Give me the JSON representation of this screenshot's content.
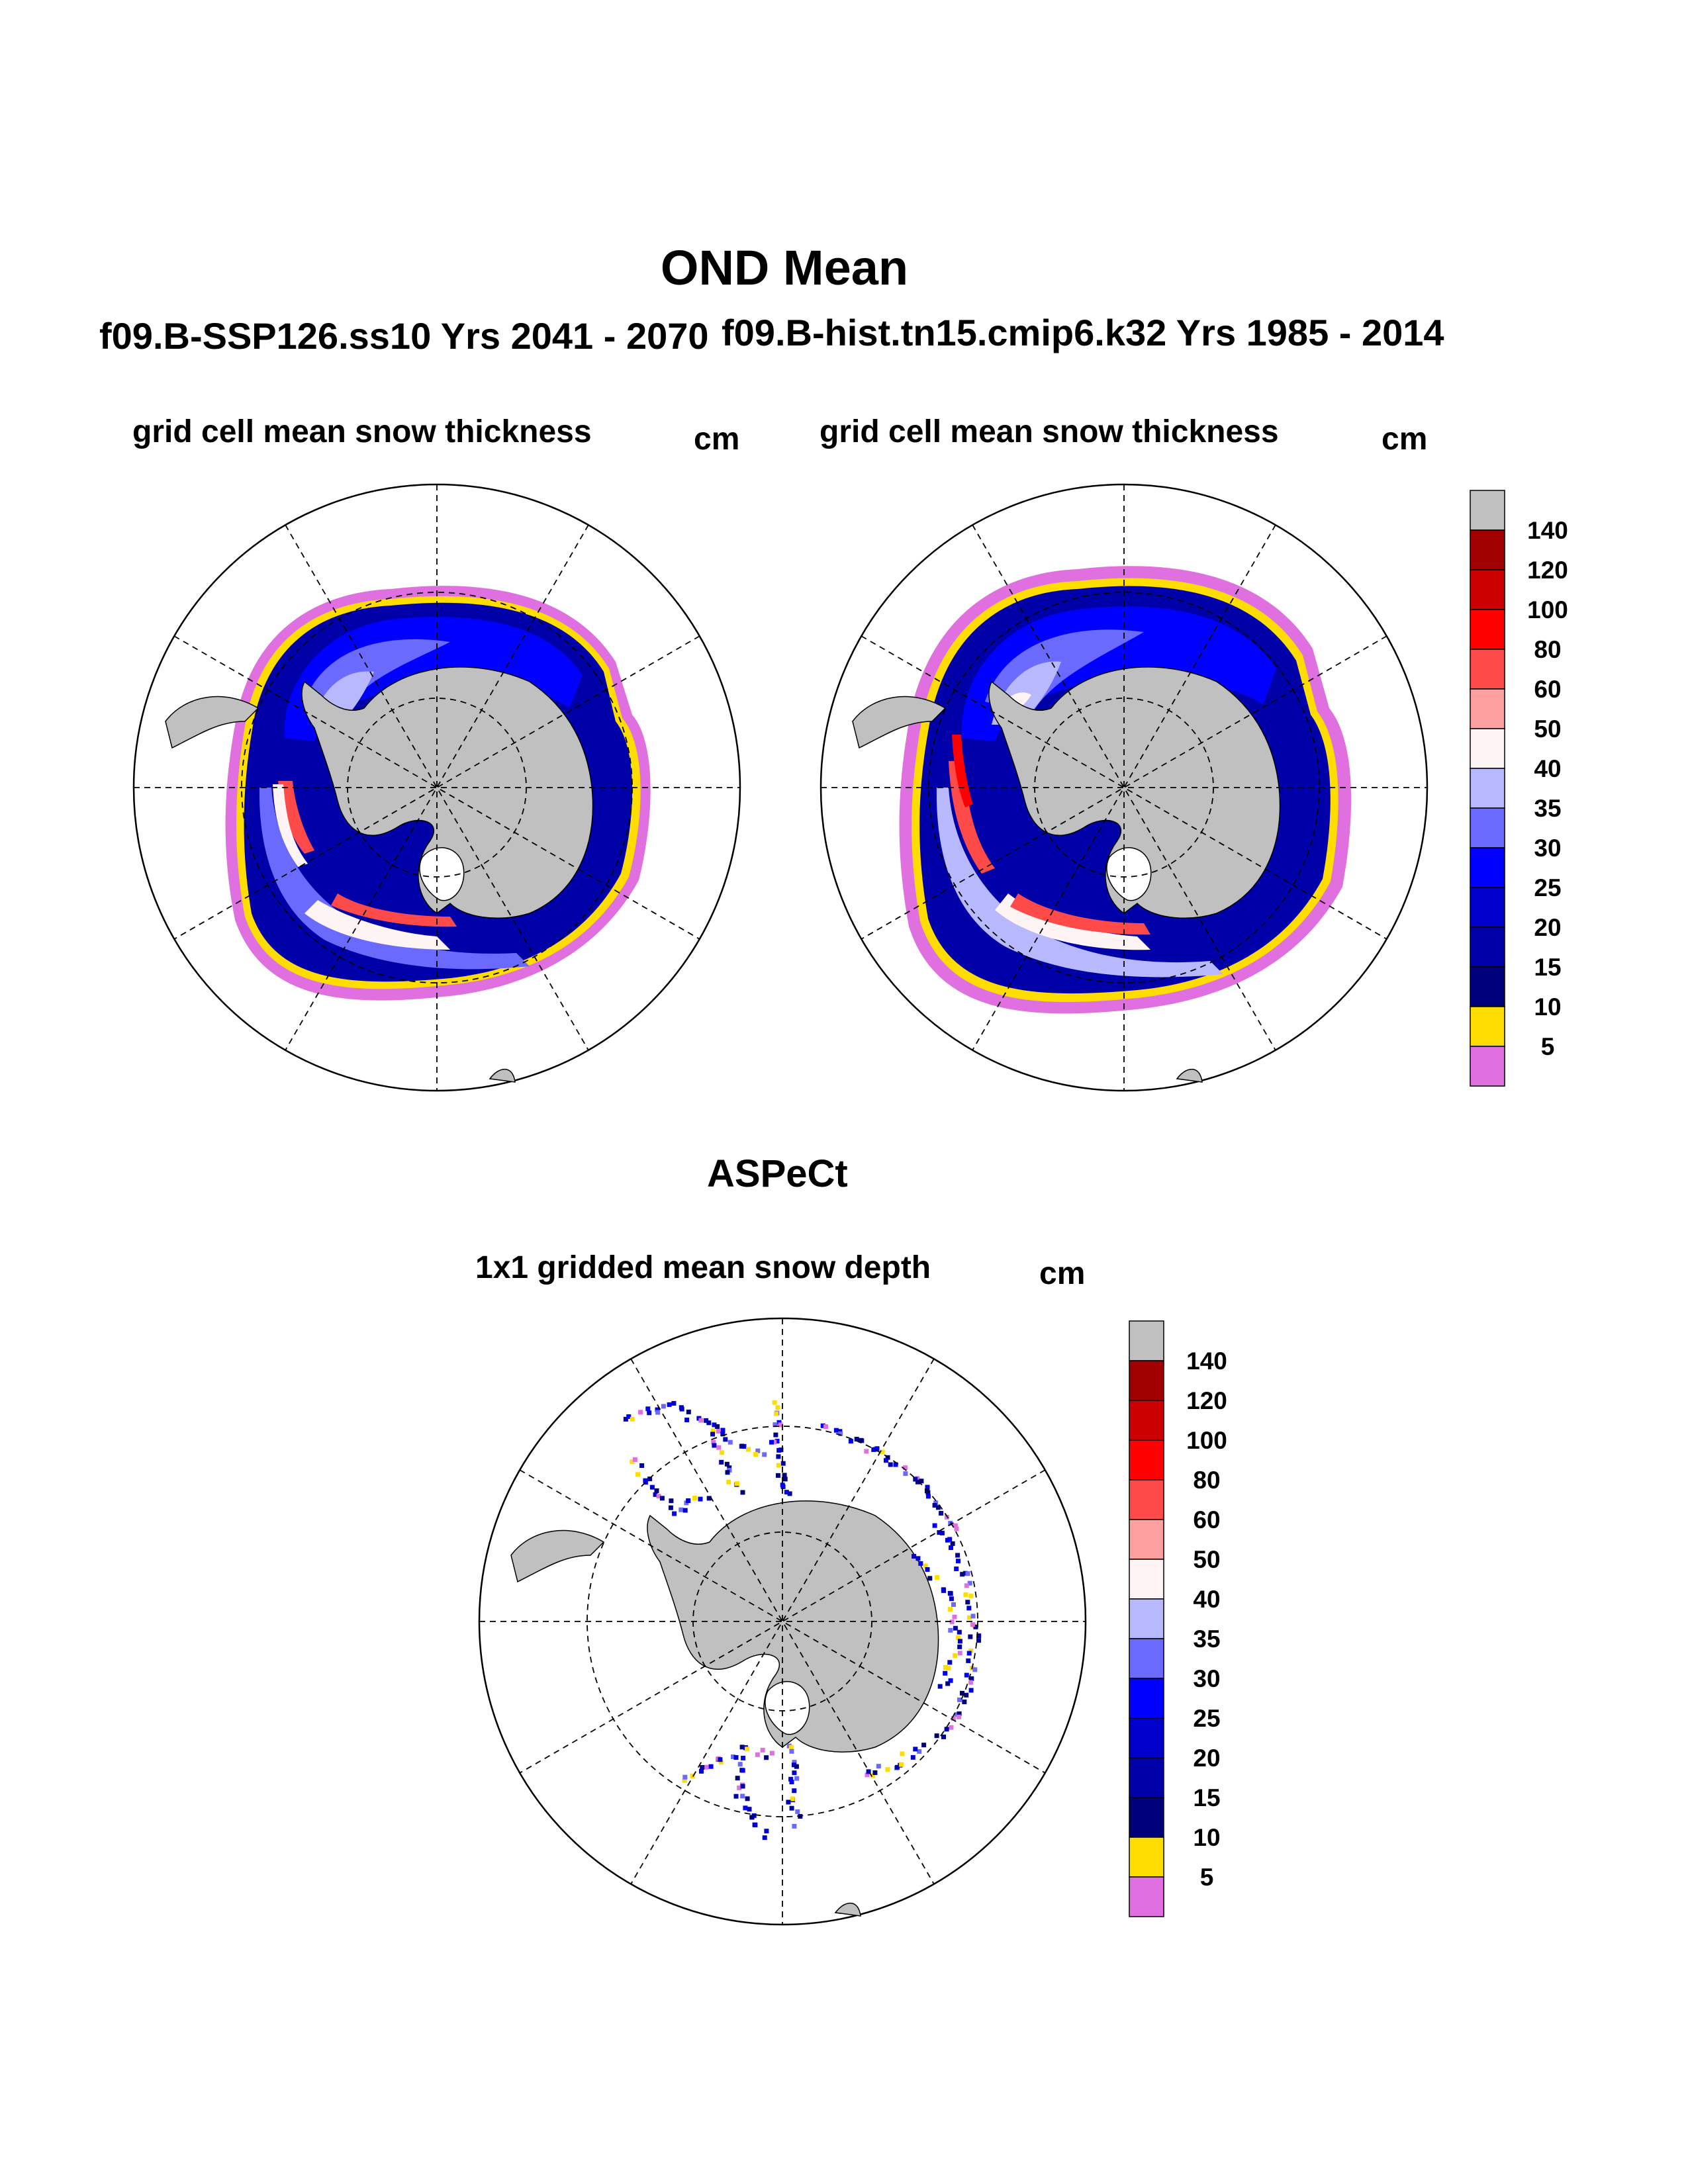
{
  "figure": {
    "title": "OND Mean",
    "panels": [
      {
        "id": "model-ssp126",
        "run_title": "f09.B-SSP126.ss10  Yrs 2041 - 2070",
        "subtitle": "grid cell mean snow thickness",
        "units": "cm"
      },
      {
        "id": "model-hist",
        "run_title": "f09.B-hist.tn15.cmip6.k32  Yrs 1985 - 2014",
        "subtitle": "grid cell mean snow thickness",
        "units": "cm"
      },
      {
        "id": "aspect-obs",
        "run_title": "ASPeCt",
        "subtitle": "1x1 gridded mean snow depth",
        "units": "cm"
      }
    ]
  },
  "chart_data": [
    {
      "type": "heatmap",
      "projection": "south polar stereographic",
      "title": "f09.B-SSP126.ss10  Yrs 2041 - 2070",
      "subtitle": "grid cell mean snow thickness",
      "units": "cm",
      "levels": [
        5,
        10,
        15,
        20,
        25,
        30,
        35,
        40,
        50,
        60,
        80,
        100,
        120,
        140
      ],
      "colors": [
        "#e070e0",
        "#ffdd00",
        "#00007a",
        "#0000a8",
        "#0000cc",
        "#0000ff",
        "#6a6aff",
        "#b8b8ff",
        "#fff4f4",
        "#ffa0a0",
        "#ff4a4a",
        "#ff0000",
        "#cc0000",
        "#a00000",
        "#c0c0c0"
      ]
    },
    {
      "type": "heatmap",
      "projection": "south polar stereographic",
      "title": "f09.B-hist.tn15.cmip6.k32  Yrs 1985 - 2014",
      "subtitle": "grid cell mean snow thickness",
      "units": "cm",
      "levels": [
        5,
        10,
        15,
        20,
        25,
        30,
        35,
        40,
        50,
        60,
        80,
        100,
        120,
        140
      ],
      "colors": [
        "#e070e0",
        "#ffdd00",
        "#00007a",
        "#0000a8",
        "#0000cc",
        "#0000ff",
        "#6a6aff",
        "#b8b8ff",
        "#fff4f4",
        "#ffa0a0",
        "#ff4a4a",
        "#ff0000",
        "#cc0000",
        "#a00000",
        "#c0c0c0"
      ]
    },
    {
      "type": "heatmap",
      "projection": "south polar stereographic",
      "title": "ASPeCt",
      "subtitle": "1x1 gridded mean snow depth",
      "units": "cm",
      "levels": [
        5,
        10,
        15,
        20,
        25,
        30,
        35,
        40,
        50,
        60,
        80,
        100,
        120,
        140
      ],
      "colors": [
        "#e070e0",
        "#ffdd00",
        "#00007a",
        "#0000a8",
        "#0000cc",
        "#0000ff",
        "#6a6aff",
        "#b8b8ff",
        "#fff4f4",
        "#ffa0a0",
        "#ff4a4a",
        "#ff0000",
        "#cc0000",
        "#a00000",
        "#c0c0c0"
      ]
    }
  ],
  "colorbar": {
    "labels": [
      "140",
      "120",
      "100",
      "80",
      "60",
      "50",
      "40",
      "35",
      "30",
      "25",
      "20",
      "15",
      "10",
      "5"
    ],
    "colors_top_to_bottom": [
      "#c0c0c0",
      "#a00000",
      "#cc0000",
      "#ff0000",
      "#ff4a4a",
      "#ffa0a0",
      "#fff4f4",
      "#b8b8ff",
      "#6a6aff",
      "#0000ff",
      "#0000cc",
      "#0000a8",
      "#00007a",
      "#ffdd00",
      "#e070e0"
    ]
  }
}
